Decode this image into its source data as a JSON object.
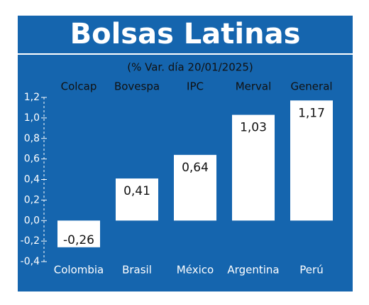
{
  "chart_data": {
    "type": "bar",
    "title": "Bolsas Latinas",
    "subtitle": "(% Var. día 20/01/2025)",
    "indices": [
      "Colcap",
      "Bovespa",
      "IPC",
      "Merval",
      "General"
    ],
    "categories": [
      "Colombia",
      "Brasil",
      "México",
      "Argentina",
      "Perú"
    ],
    "values": [
      -0.26,
      0.41,
      0.64,
      1.03,
      1.17
    ],
    "value_labels": [
      "-0,26",
      "0,41",
      "0,64",
      "1,03",
      "1,17"
    ],
    "color": "#ffffff",
    "ylim": [
      -0.4,
      1.2
    ],
    "yticks": [
      {
        "value": 1.2,
        "label": "1,2"
      },
      {
        "value": 1.0,
        "label": "1,0"
      },
      {
        "value": 0.8,
        "label": "0,8"
      },
      {
        "value": 0.6,
        "label": "0,6"
      },
      {
        "value": 0.4,
        "label": "0,4"
      },
      {
        "value": 0.2,
        "label": "0,2"
      },
      {
        "value": 0.0,
        "label": "0,0"
      },
      {
        "value": -0.2,
        "label": "-0,2"
      },
      {
        "value": -0.4,
        "label": "-0,4"
      }
    ]
  }
}
